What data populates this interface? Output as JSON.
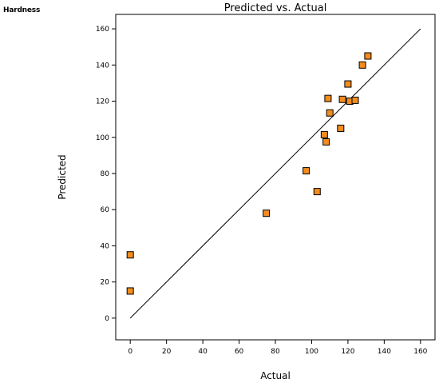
{
  "response_label": "Hardness",
  "chart_data": {
    "type": "scatter",
    "title": "Predicted vs. Actual",
    "xlabel": "Actual",
    "ylabel": "Predicted",
    "xlim": [
      -8,
      168
    ],
    "ylim": [
      -12,
      168
    ],
    "xticks": [
      0,
      20,
      40,
      60,
      80,
      100,
      120,
      140,
      160
    ],
    "yticks": [
      0,
      20,
      40,
      60,
      80,
      100,
      120,
      140,
      160
    ],
    "reference_line": {
      "from": [
        0,
        0
      ],
      "to": [
        160,
        160
      ]
    },
    "grid": false,
    "marker": {
      "shape": "square",
      "fill": "#F28C1E",
      "stroke": "#000000"
    },
    "points": [
      {
        "x": 0,
        "y": 35
      },
      {
        "x": 0,
        "y": 15
      },
      {
        "x": 75,
        "y": 58
      },
      {
        "x": 97,
        "y": 81.5
      },
      {
        "x": 103,
        "y": 70
      },
      {
        "x": 107,
        "y": 101.5
      },
      {
        "x": 108,
        "y": 97.5
      },
      {
        "x": 109,
        "y": 121.5
      },
      {
        "x": 110,
        "y": 113.5
      },
      {
        "x": 116,
        "y": 105
      },
      {
        "x": 117,
        "y": 121
      },
      {
        "x": 120,
        "y": 129.5
      },
      {
        "x": 121,
        "y": 120
      },
      {
        "x": 124,
        "y": 120.5
      },
      {
        "x": 128,
        "y": 140
      },
      {
        "x": 131,
        "y": 145
      }
    ]
  }
}
